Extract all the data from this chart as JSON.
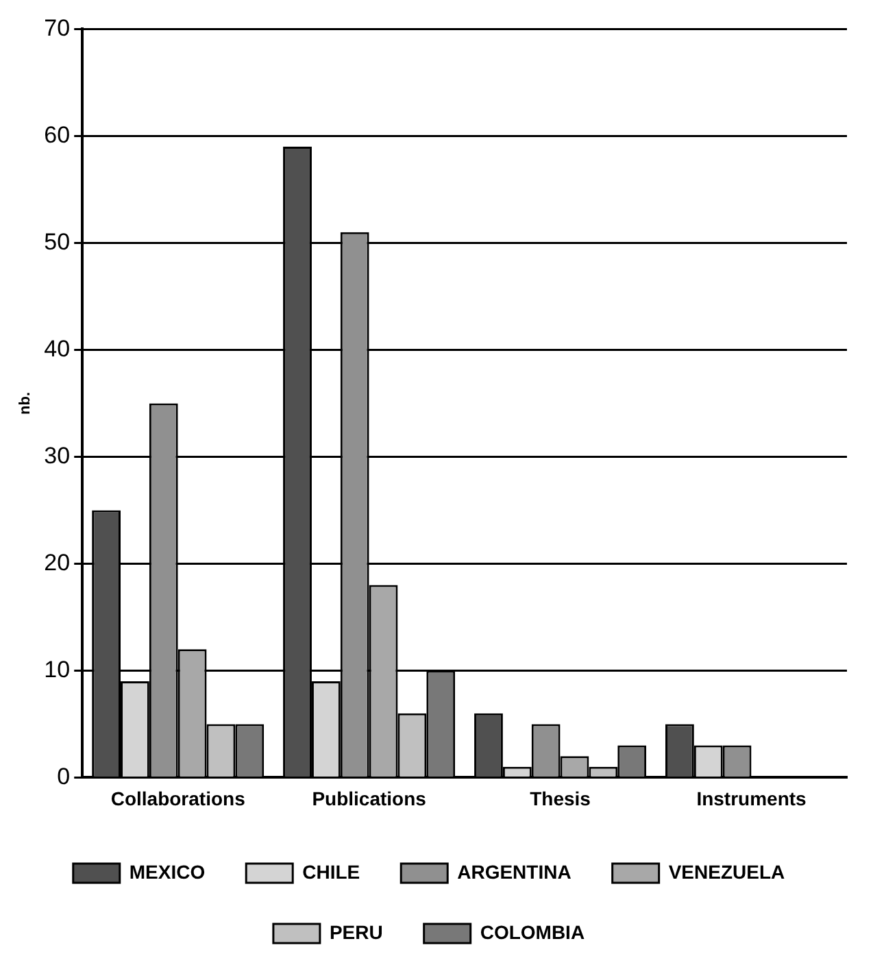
{
  "chart_data": {
    "type": "bar",
    "ylabel": "nb.",
    "categories": [
      "Collaborations",
      "Publications",
      "Thesis",
      "Instruments"
    ],
    "series": [
      {
        "name": "MEXICO",
        "color": "#505050",
        "values": [
          25,
          59,
          6,
          5
        ]
      },
      {
        "name": "CHILE",
        "color": "#d4d4d4",
        "values": [
          9,
          9,
          1,
          3
        ]
      },
      {
        "name": "ARGENTINA",
        "color": "#909090",
        "values": [
          35,
          51,
          5,
          3
        ]
      },
      {
        "name": "VENEZUELA",
        "color": "#a8a8a8",
        "values": [
          12,
          18,
          2,
          0
        ]
      },
      {
        "name": "PERU",
        "color": "#c0c0c0",
        "values": [
          5,
          6,
          1,
          0
        ]
      },
      {
        "name": "COLOMBIA",
        "color": "#787878",
        "values": [
          5,
          10,
          3,
          0
        ]
      }
    ],
    "ylim": [
      0,
      70
    ],
    "yticks": [
      0,
      10,
      20,
      30,
      40,
      50,
      60,
      70
    ],
    "grid": "y",
    "legend": "bottom"
  }
}
